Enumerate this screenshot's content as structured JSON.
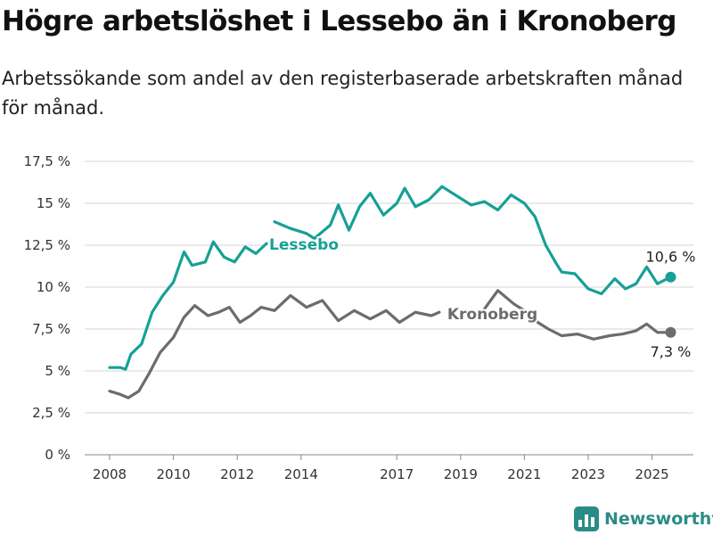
{
  "chart_data": {
    "type": "line",
    "title": "Högre arbetslöshet i Lessebo än i Kronoberg",
    "subtitle": "Arbetssökande som andel av den registerbaserade arbetskraften månad för månad.",
    "xticks": [
      "2008",
      "2010",
      "2012",
      "2014",
      "2017",
      "2019",
      "2021",
      "2023",
      "2025"
    ],
    "ylim": [
      0,
      17.5
    ],
    "yticks": [
      "0 %",
      "2,5 %",
      "5 %",
      "7,5 %",
      "10 %",
      "12,5 %",
      "15 %",
      "17,5 %"
    ],
    "grid": true,
    "series": [
      {
        "name": "Lessebo",
        "color": "#16a096",
        "end_label": "10,6 %",
        "segments": [
          [
            [
              "2008-01",
              5.2
            ],
            [
              "2008-05",
              5.2
            ],
            [
              "2008-07",
              5.1
            ],
            [
              "2008-09",
              6.0
            ],
            [
              "2009-01",
              6.6
            ],
            [
              "2009-05",
              8.5
            ],
            [
              "2009-09",
              9.5
            ],
            [
              "2010-01",
              10.3
            ],
            [
              "2010-05",
              12.1
            ],
            [
              "2010-08",
              11.3
            ],
            [
              "2011-01",
              11.5
            ],
            [
              "2011-04",
              12.7
            ],
            [
              "2011-08",
              11.8
            ],
            [
              "2011-12",
              11.5
            ],
            [
              "2012-04",
              12.4
            ],
            [
              "2012-08",
              12.0
            ],
            [
              "2012-12",
              12.6
            ]
          ],
          [
            [
              "2013-03",
              13.9
            ],
            [
              "2013-09",
              13.5
            ],
            [
              "2014-03",
              13.2
            ],
            [
              "2014-06",
              12.9
            ],
            [
              "2014-12",
              13.7
            ],
            [
              "2015-03",
              14.9
            ],
            [
              "2015-07",
              13.4
            ],
            [
              "2015-11",
              14.8
            ],
            [
              "2016-03",
              15.6
            ],
            [
              "2016-08",
              14.3
            ],
            [
              "2017-01",
              15.0
            ],
            [
              "2017-04",
              15.9
            ],
            [
              "2017-08",
              14.8
            ],
            [
              "2018-01",
              15.2
            ],
            [
              "2018-06",
              16.0
            ],
            [
              "2018-12",
              15.4
            ],
            [
              "2019-05",
              14.9
            ],
            [
              "2019-10",
              15.1
            ],
            [
              "2020-03",
              14.6
            ],
            [
              "2020-08",
              15.5
            ],
            [
              "2021-01",
              15.0
            ],
            [
              "2021-05",
              14.2
            ],
            [
              "2021-09",
              12.5
            ],
            [
              "2022-01",
              11.4
            ],
            [
              "2022-03",
              10.9
            ],
            [
              "2022-08",
              10.8
            ],
            [
              "2023-01",
              9.9
            ],
            [
              "2023-06",
              9.6
            ],
            [
              "2023-11",
              10.5
            ],
            [
              "2024-03",
              9.9
            ],
            [
              "2024-07",
              10.2
            ],
            [
              "2024-11",
              11.2
            ],
            [
              "2025-03",
              10.2
            ],
            [
              "2025-08",
              10.6
            ]
          ]
        ]
      },
      {
        "name": "Kronoberg",
        "color": "#6b6b70",
        "end_label": "7,3 %",
        "segments": [
          [
            [
              "2008-01",
              3.8
            ],
            [
              "2008-05",
              3.6
            ],
            [
              "2008-08",
              3.4
            ],
            [
              "2008-12",
              3.8
            ],
            [
              "2009-04",
              4.9
            ],
            [
              "2009-08",
              6.1
            ],
            [
              "2010-01",
              7.0
            ],
            [
              "2010-05",
              8.2
            ],
            [
              "2010-09",
              8.9
            ],
            [
              "2011-02",
              8.3
            ],
            [
              "2011-06",
              8.5
            ],
            [
              "2011-10",
              8.8
            ],
            [
              "2012-02",
              7.9
            ],
            [
              "2012-06",
              8.3
            ],
            [
              "2012-10",
              8.8
            ],
            [
              "2013-03",
              8.6
            ],
            [
              "2013-09",
              9.5
            ],
            [
              "2014-03",
              8.8
            ],
            [
              "2014-09",
              9.2
            ],
            [
              "2015-03",
              8.0
            ],
            [
              "2015-09",
              8.6
            ],
            [
              "2016-03",
              8.1
            ],
            [
              "2016-09",
              8.6
            ],
            [
              "2017-02",
              7.9
            ],
            [
              "2017-08",
              8.5
            ],
            [
              "2018-02",
              8.3
            ],
            [
              "2018-05",
              8.5
            ]
          ],
          [
            [
              "2019-10",
              8.7
            ],
            [
              "2020-03",
              9.8
            ],
            [
              "2020-09",
              9.0
            ],
            [
              "2021-03",
              8.4
            ],
            [
              "2021-06",
              7.9
            ],
            [
              "2021-10",
              7.5
            ],
            [
              "2022-03",
              7.1
            ],
            [
              "2022-09",
              7.2
            ],
            [
              "2023-03",
              6.9
            ],
            [
              "2023-09",
              7.1
            ],
            [
              "2024-02",
              7.2
            ],
            [
              "2024-07",
              7.4
            ],
            [
              "2024-11",
              7.8
            ],
            [
              "2025-03",
              7.3
            ],
            [
              "2025-08",
              7.3
            ]
          ]
        ]
      }
    ]
  },
  "brand": {
    "name": "Newsworthy"
  }
}
